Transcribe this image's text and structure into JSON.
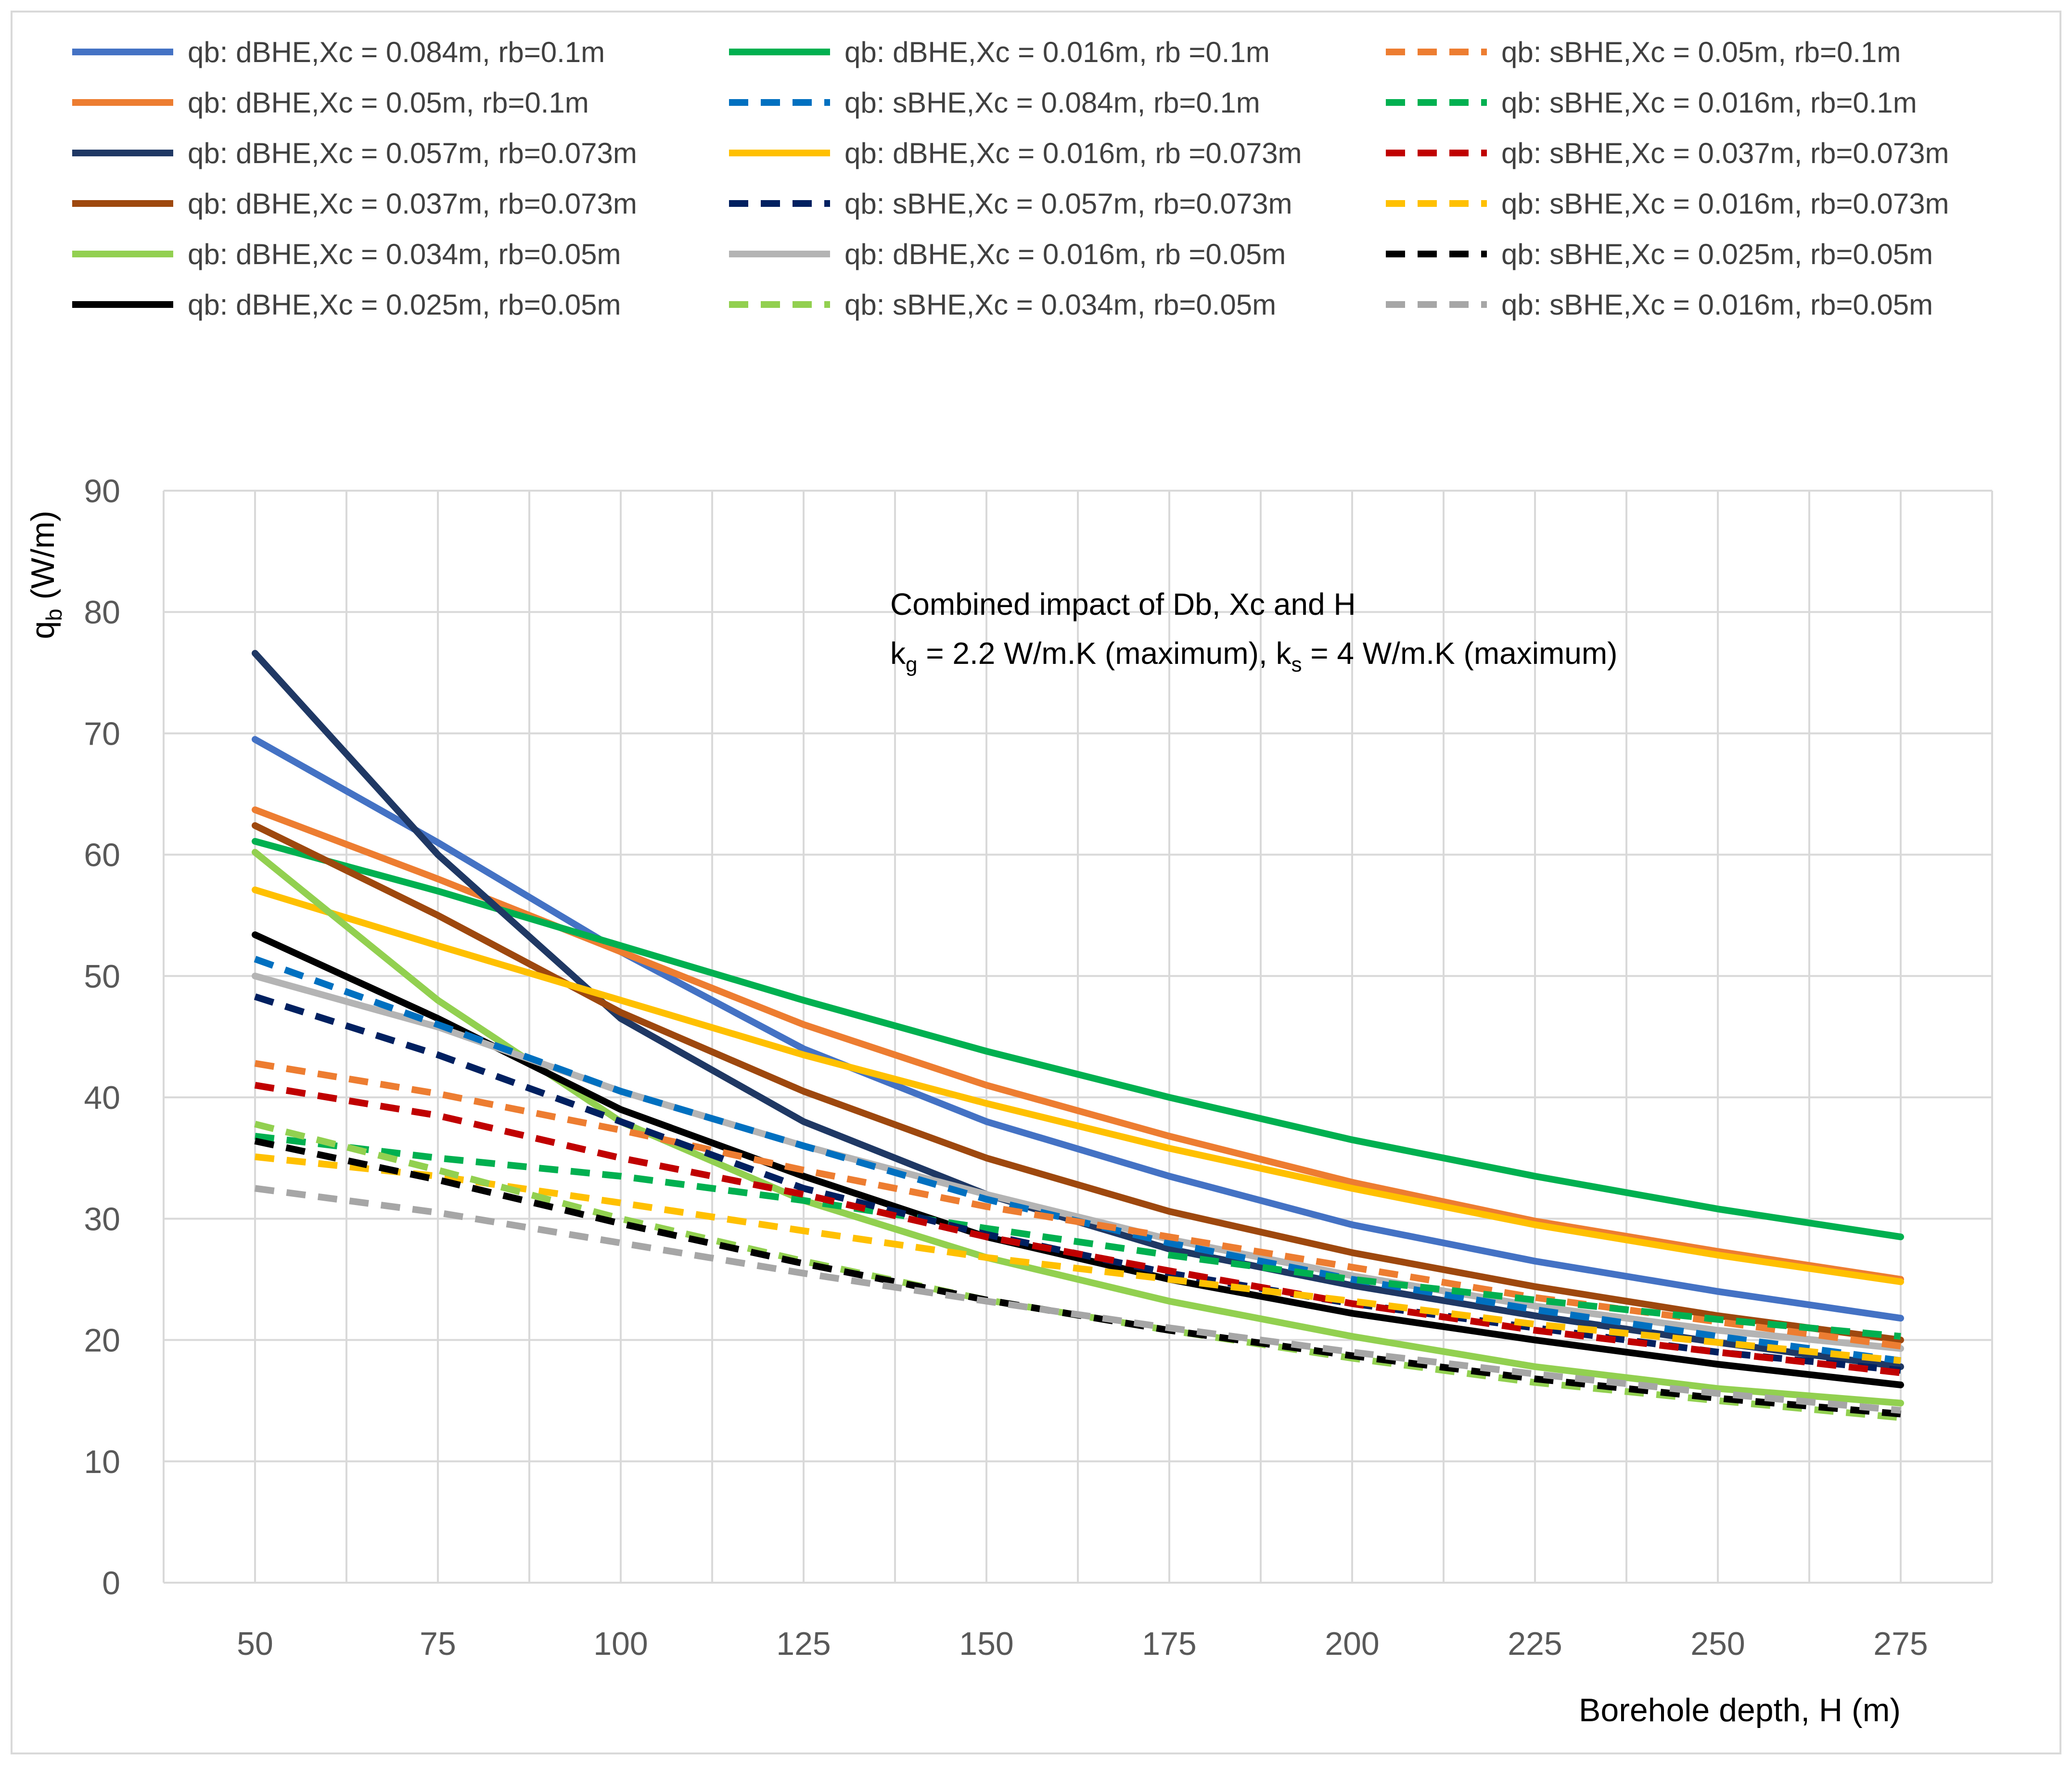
{
  "chart_data": {
    "type": "line",
    "annotation": {
      "line1": "Combined impact of Db, Xc  and H",
      "line2": "k_g = 2.2 W/m.K (maximum), k_s = 4 W/m.K (maximum)",
      "l2_k1": "k",
      "l2_g": "g",
      "l2_mid": " = 2.2 W/m.K (maximum), k",
      "l2_s": "s",
      "l2_end": " = 4 W/m.K (maximum)"
    },
    "xlabel": "Borehole depth, H (m)",
    "ylabel": "q_b (W/m)",
    "ylabel_q": "q",
    "ylabel_b": "b",
    "ylabel_unit": " (W/m)",
    "x": [
      50,
      75,
      100,
      125,
      150,
      175,
      200,
      225,
      250,
      275
    ],
    "xlim": [
      37.5,
      287.5
    ],
    "ylim": [
      0,
      90
    ],
    "xticks": [
      "50",
      "75",
      "100",
      "125",
      "150",
      "175",
      "200",
      "225",
      "250",
      "275"
    ],
    "yticks": [
      "0",
      "10",
      "20",
      "30",
      "40",
      "50",
      "60",
      "70",
      "80",
      "90"
    ],
    "grid": true,
    "legend_position": "top",
    "series": [
      {
        "name": "qb: dBHE,Xc = 0.084m, rb=0.1m",
        "color": "#4472C4",
        "dash": "solid",
        "values": [
          69.5,
          61,
          52,
          44,
          38,
          33.5,
          29.5,
          26.5,
          24,
          21.8
        ]
      },
      {
        "name": "qb: dBHE,Xc = 0.05m, rb=0.1m",
        "color": "#ED7D31",
        "dash": "solid",
        "values": [
          63.7,
          58,
          52,
          46,
          41,
          36.8,
          33,
          29.8,
          27.3,
          25
        ]
      },
      {
        "name": "qb: dBHE,Xc = 0.016m, rb =0.1m",
        "color": "#00B050",
        "dash": "solid",
        "values": [
          61.1,
          57,
          52.5,
          48,
          43.8,
          40,
          36.5,
          33.5,
          30.8,
          28.5
        ]
      },
      {
        "name": "qb: sBHE,Xc = 0.084m, rb=0.1m",
        "color": "#0070C0",
        "dash": "dashed",
        "values": [
          51.4,
          46,
          40.5,
          36,
          31.6,
          28,
          25,
          22.5,
          20.3,
          18.3
        ]
      },
      {
        "name": "qb: sBHE,Xc = 0.05m, rb=0.1m",
        "color": "#ED7D31",
        "dash": "dashed",
        "values": [
          42.8,
          40.3,
          37.3,
          34,
          31,
          28.5,
          26,
          23.5,
          21.5,
          19.5
        ]
      },
      {
        "name": "qb: sBHE,Xc = 0.016m, rb=0.1m",
        "color": "#00B050",
        "dash": "dashed",
        "values": [
          36.8,
          35,
          33.5,
          31.5,
          29.2,
          27,
          25,
          23.3,
          21.7,
          20.3
        ]
      },
      {
        "name": "qb: dBHE,Xc = 0.057m, rb=0.073m",
        "color": "#1F3864",
        "dash": "solid",
        "values": [
          76.6,
          60,
          46.5,
          38,
          32,
          27.5,
          24.5,
          22,
          19.8,
          17.8
        ]
      },
      {
        "name": "qb: dBHE,Xc = 0.037m, rb=0.073m",
        "color": "#9E480E",
        "dash": "solid",
        "values": [
          62.4,
          55,
          47,
          40.5,
          35,
          30.6,
          27.2,
          24.4,
          22,
          20
        ]
      },
      {
        "name": "qb: dBHE,Xc = 0.016m, rb =0.073m",
        "color": "#FFC000",
        "dash": "solid",
        "values": [
          57.1,
          52.5,
          48,
          43.5,
          39.5,
          35.8,
          32.5,
          29.5,
          27,
          24.8
        ]
      },
      {
        "name": "qb: sBHE,Xc = 0.057m, rb=0.073m",
        "color": "#002060",
        "dash": "dashed",
        "values": [
          48.3,
          43.5,
          38,
          32.5,
          28.7,
          25.5,
          23,
          21,
          19,
          17.5
        ]
      },
      {
        "name": "qb: sBHE,Xc = 0.037m, rb=0.073m",
        "color": "#C00000",
        "dash": "dashed",
        "values": [
          41,
          38.5,
          35,
          32,
          28.5,
          25.7,
          23,
          20.8,
          19,
          17.3
        ]
      },
      {
        "name": "qb: sBHE,Xc = 0.016m, rb=0.073m",
        "color": "#FFC000",
        "dash": "dashed",
        "values": [
          35.1,
          33.5,
          31.3,
          29,
          26.8,
          25,
          23.2,
          21.3,
          19.8,
          18.3
        ]
      },
      {
        "name": "qb: dBHE,Xc = 0.034m, rb=0.05m",
        "color": "#92D050",
        "dash": "solid",
        "values": [
          60.2,
          48,
          38,
          31.5,
          26.8,
          23.2,
          20.3,
          17.8,
          16,
          14.8
        ]
      },
      {
        "name": "qb: dBHE,Xc = 0.025m, rb=0.05m",
        "color": "#000000",
        "dash": "solid",
        "values": [
          53.4,
          46.5,
          39,
          33.5,
          28.5,
          25,
          22.2,
          20,
          18,
          16.3
        ]
      },
      {
        "name": "qb: dBHE,Xc = 0.016m, rb =0.05m",
        "color": "#B4B4B4",
        "dash": "solid",
        "values": [
          50,
          45.8,
          40.5,
          36,
          32,
          28.3,
          25.3,
          22.8,
          20.8,
          19.3
        ]
      },
      {
        "name": "qb: sBHE,Xc = 0.034m, rb=0.05m",
        "color": "#92D050",
        "dash": "dashed",
        "values": [
          37.8,
          34,
          30,
          26.5,
          23.3,
          20.8,
          18.5,
          16.5,
          15,
          13.6
        ]
      },
      {
        "name": "qb: sBHE,Xc = 0.025m, rb=0.05m",
        "color": "#000000",
        "dash": "dashed",
        "values": [
          36.4,
          33.2,
          29.6,
          26.3,
          23.3,
          20.8,
          18.7,
          16.8,
          15.2,
          13.9
        ]
      },
      {
        "name": "qb: sBHE,Xc = 0.016m, rb=0.05m",
        "color": "#A6A6A6",
        "dash": "dashed",
        "values": [
          32.5,
          30.5,
          28,
          25.5,
          23.2,
          21,
          19,
          17.2,
          15.6,
          14.2
        ]
      }
    ]
  }
}
